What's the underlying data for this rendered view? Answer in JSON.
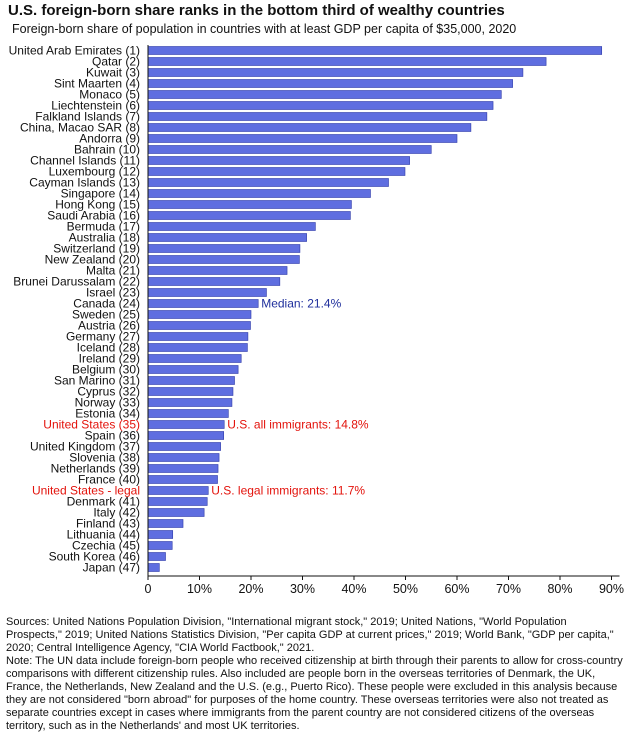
{
  "title": "U.S. foreign-born share ranks in the bottom third of wealthy countries",
  "subtitle": "Foreign-born share of population in countries with at least GDP per capita of $35,000, 2020",
  "colors": {
    "bar": "#5f6ee0",
    "bar_edge": "#2e3aa8",
    "median": "#1f2f9c",
    "us": "#e3120b",
    "axis": "#111111"
  },
  "chart_data": {
    "type": "bar",
    "orientation": "horizontal",
    "categories": [
      "United Arab Emirates (1)",
      "Qatar (2)",
      "Kuwait (3)",
      "Sint Maarten (4)",
      "Monaco (5)",
      "Liechtenstein (6)",
      "Falkland Islands (7)",
      "China, Macao SAR (8)",
      "Andorra (9)",
      "Bahrain (10)",
      "Channel Islands (11)",
      "Luxembourg (12)",
      "Cayman Islands (13)",
      "Singapore (14)",
      "Hong Kong (15)",
      "Saudi Arabia (16)",
      "Bermuda (17)",
      "Australia (18)",
      "Switzerland (19)",
      "New Zealand (20)",
      "Malta (21)",
      "Brunei Darussalam (22)",
      "Israel (23)",
      "Canada (24)",
      "Sweden (25)",
      "Austria (26)",
      "Germany (27)",
      "Iceland (28)",
      "Ireland (29)",
      "Belgium (30)",
      "San Marino (31)",
      "Cyprus (32)",
      "Norway (33)",
      "Estonia (34)",
      "United States (35)",
      "Spain (36)",
      "United Kingdom (37)",
      "Slovenia (38)",
      "Netherlands (39)",
      "France (40)",
      "United States - legal",
      "Denmark (41)",
      "Italy (42)",
      "Finland (43)",
      "Lithuania (44)",
      "Czechia (45)",
      "South Korea (46)",
      "Japan (47)"
    ],
    "values": [
      88.1,
      77.3,
      72.8,
      70.8,
      68.6,
      67.0,
      65.8,
      62.7,
      60.0,
      55.0,
      50.8,
      49.9,
      46.7,
      43.2,
      39.5,
      39.3,
      32.5,
      30.8,
      29.5,
      29.4,
      27.0,
      25.6,
      23.0,
      21.4,
      20.0,
      19.9,
      19.4,
      19.3,
      18.1,
      17.5,
      16.8,
      16.5,
      16.3,
      15.6,
      14.8,
      14.7,
      14.1,
      13.8,
      13.6,
      13.5,
      11.7,
      11.5,
      10.9,
      6.8,
      4.8,
      4.7,
      3.4,
      2.2
    ],
    "highlight_categories": [
      "United States (35)",
      "United States - legal"
    ],
    "annotations": [
      {
        "category": "Canada (24)",
        "text": "Median: 21.4%",
        "color": "median"
      },
      {
        "category": "United States (35)",
        "text": "U.S. all immigrants: 14.8%",
        "color": "us"
      },
      {
        "category": "United States - legal",
        "text": "U.S. legal immigrants: 11.7%",
        "color": "us"
      }
    ],
    "x_ticks": [
      "0",
      "10%",
      "20%",
      "30%",
      "40%",
      "50%",
      "60%",
      "70%",
      "80%",
      "90%"
    ],
    "xlim": [
      0,
      90
    ],
    "grid": false
  },
  "notes": {
    "sources": "Sources: United Nations Population Division, \"International migrant stock,\" 2019; United Nations, \"World Population Prospects,\" 2019; United Nations Statistics Division, \"Per capita GDP at current prices,\" 2019; World Bank, \"GDP per capita,\" 2020; Central Intelligence Agency, \"CIA World Factbook,\" 2021.",
    "note": "Note: The UN data include foreign-born people who received citizenship at birth through their parents to allow for cross-country comparisons with different citizenship rules. Also included are people born in the overseas territories of Denmark, the UK, France, the Netherlands, New Zealand and the U.S. (e.g., Puerto Rico). These people were excluded in this analysis because they are not considered \"born abroad\" for purposes of the home country. These overseas territories were also not treated as separate countries except in cases where immigrants from the parent country are not considered citizens of the overseas territory, such as in the Netherlands' and most UK territories."
  }
}
